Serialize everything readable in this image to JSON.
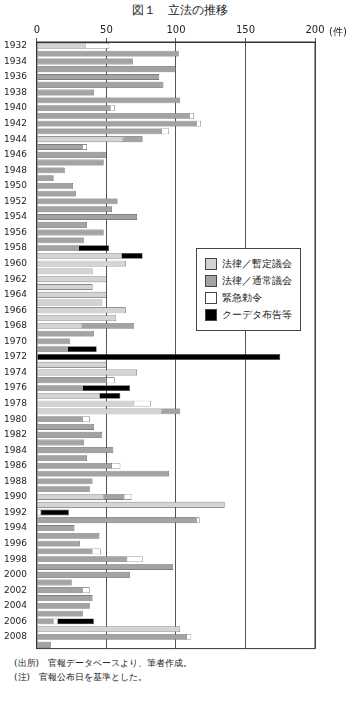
{
  "chart_data": {
    "type": "bar",
    "title": "図１　立法の推移",
    "x_label": "(件)",
    "notes": [
      "(出所)　官報データベースより、筆者作成。",
      "(注)　官報公布日を基準とした。"
    ],
    "orientation": "horizontal",
    "stacked": true,
    "grid": true,
    "legend": "right",
    "xlim": [
      0,
      200
    ],
    "xticks": [
      0,
      50,
      100,
      150,
      200
    ],
    "categories": [
      1932,
      null,
      1934,
      null,
      1936,
      null,
      1938,
      null,
      1940,
      null,
      1942,
      null,
      1944,
      null,
      1946,
      null,
      1948,
      null,
      1950,
      null,
      1952,
      null,
      1954,
      null,
      1956,
      null,
      1958,
      null,
      1960,
      null,
      1962,
      null,
      1964,
      null,
      1966,
      null,
      1968,
      null,
      1970,
      null,
      1972,
      null,
      1974,
      null,
      1976,
      null,
      1978,
      null,
      1980,
      null,
      1982,
      null,
      1984,
      null,
      1986,
      null,
      1988,
      null,
      1990,
      null,
      1992,
      null,
      1994,
      null,
      1996,
      null,
      1998,
      null,
      2000,
      null,
      2002,
      null,
      2004,
      null,
      2006,
      null,
      2008,
      null
    ],
    "series": [
      {
        "name": "法律／暫定議会",
        "color": "#d4d4d4",
        "values": [
          35,
          0,
          0,
          0,
          0,
          0,
          0,
          0,
          0,
          0,
          0,
          0,
          62,
          0,
          0,
          0,
          0,
          0,
          0,
          0,
          0,
          0,
          0,
          0,
          0,
          0,
          0,
          61,
          64,
          40,
          50,
          40,
          50,
          47,
          64,
          57,
          32,
          0,
          0,
          0,
          0,
          50,
          72,
          0,
          0,
          45,
          70,
          90,
          0,
          0,
          0,
          0,
          0,
          0,
          0,
          0,
          0,
          0,
          48,
          135,
          0,
          0,
          0,
          0,
          0,
          0,
          0,
          0,
          0,
          0,
          0,
          0,
          0,
          0,
          0,
          103,
          0,
          0
        ]
      },
      {
        "name": "法律／通常議会",
        "color": "#a3a3a3",
        "values": [
          0,
          102,
          69,
          100,
          88,
          91,
          41,
          103,
          53,
          110,
          115,
          90,
          14,
          33,
          50,
          48,
          20,
          12,
          26,
          28,
          58,
          54,
          72,
          36,
          48,
          34,
          30,
          0,
          0,
          0,
          0,
          0,
          0,
          0,
          0,
          0,
          38,
          41,
          24,
          22,
          0,
          0,
          0,
          50,
          33,
          0,
          0,
          13,
          33,
          41,
          47,
          34,
          55,
          36,
          54,
          95,
          40,
          38,
          15,
          0,
          0,
          115,
          27,
          45,
          31,
          40,
          65,
          98,
          67,
          25,
          33,
          40,
          38,
          33,
          12,
          0,
          108,
          10
        ]
      },
      {
        "name": "緊急勅令",
        "color": "#ffffff",
        "values": [
          17,
          0,
          0,
          0,
          0,
          0,
          0,
          0,
          3,
          3,
          3,
          5,
          0,
          3,
          0,
          0,
          0,
          0,
          0,
          0,
          0,
          0,
          0,
          0,
          0,
          0,
          0,
          0,
          0,
          0,
          0,
          0,
          0,
          0,
          0,
          0,
          0,
          0,
          0,
          0,
          0,
          0,
          0,
          6,
          0,
          0,
          12,
          0,
          5,
          0,
          0,
          0,
          0,
          0,
          6,
          0,
          0,
          0,
          5,
          0,
          3,
          2,
          0,
          0,
          0,
          6,
          11,
          0,
          0,
          0,
          5,
          0,
          0,
          0,
          3,
          0,
          3,
          0
        ]
      },
      {
        "name": "クーデタ布告等",
        "color": "#000000",
        "values": [
          0,
          0,
          0,
          0,
          0,
          0,
          0,
          0,
          0,
          0,
          0,
          0,
          0,
          0,
          0,
          0,
          0,
          0,
          0,
          0,
          0,
          0,
          0,
          0,
          0,
          0,
          22,
          15,
          0,
          0,
          0,
          0,
          0,
          0,
          0,
          0,
          0,
          0,
          0,
          21,
          175,
          0,
          0,
          0,
          34,
          15,
          0,
          0,
          0,
          0,
          0,
          0,
          0,
          0,
          0,
          0,
          0,
          0,
          0,
          0,
          20,
          0,
          0,
          0,
          0,
          0,
          0,
          0,
          0,
          0,
          0,
          0,
          0,
          0,
          26,
          0,
          0,
          0
        ]
      }
    ]
  }
}
